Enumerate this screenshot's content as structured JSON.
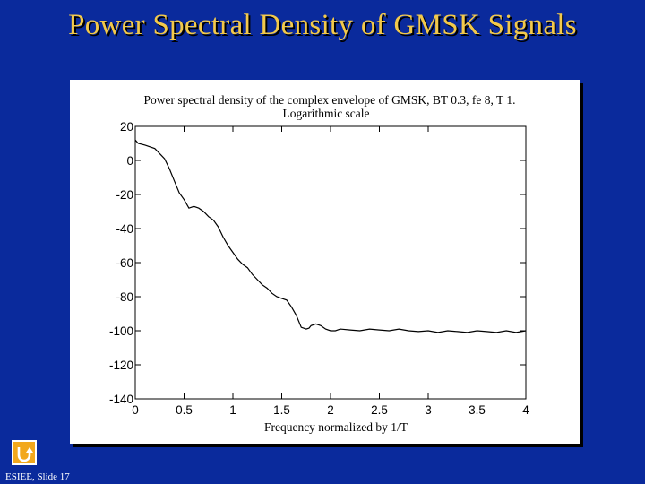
{
  "slide": {
    "title": "Power Spectral Density of GMSK Signals",
    "footer": "ESIEE, Slide 17"
  },
  "colors": {
    "background": "#0a2a9c",
    "title": "#f2c94c",
    "nav_button": "#f2a81d"
  },
  "nav": {
    "icon": "return-icon"
  },
  "chart_data": {
    "type": "line",
    "title_line1": "Power spectral density of the complex envelope of  GMSK, BT   0.3, fe   8, T   1.",
    "title_line2": "Logarithmic scale",
    "xlabel": "Frequency normalized by 1/T",
    "ylabel": "",
    "xlim": [
      0,
      4
    ],
    "ylim": [
      -140,
      20
    ],
    "xticks": [
      0,
      0.5,
      1,
      1.5,
      2,
      2.5,
      3,
      3.5,
      4
    ],
    "xtick_labels": [
      "0",
      "0.5",
      "1",
      "1.5",
      "2",
      "2.5",
      "3",
      "3.5",
      "4"
    ],
    "yticks": [
      20,
      0,
      -20,
      -40,
      -60,
      -80,
      -100,
      -120,
      -140
    ],
    "ytick_labels": [
      "20",
      "0",
      "-20",
      "-40",
      "-60",
      "-80",
      "-100",
      "-120",
      "-140"
    ],
    "grid": false,
    "series": [
      {
        "x": [
          0,
          0.03,
          0.1,
          0.2,
          0.25,
          0.3,
          0.35,
          0.4,
          0.45,
          0.5,
          0.55,
          0.6,
          0.65,
          0.7,
          0.75,
          0.8,
          0.85,
          0.9,
          0.95,
          1.0,
          1.05,
          1.1,
          1.15,
          1.2,
          1.25,
          1.3,
          1.35,
          1.4,
          1.45,
          1.5,
          1.55,
          1.6,
          1.65,
          1.7,
          1.75,
          1.78,
          1.8,
          1.85,
          1.9,
          1.95,
          2.0,
          2.05,
          2.1,
          2.2,
          2.3,
          2.4,
          2.5,
          2.6,
          2.7,
          2.8,
          2.9,
          3.0,
          3.1,
          3.2,
          3.3,
          3.4,
          3.5,
          3.6,
          3.7,
          3.8,
          3.9,
          4.0
        ],
        "y": [
          12,
          10,
          9,
          7,
          4,
          1,
          -5,
          -12,
          -19,
          -23,
          -28,
          -27,
          -28,
          -30,
          -33,
          -35,
          -39,
          -45,
          -50,
          -54,
          -58,
          -61,
          -63,
          -67,
          -70,
          -73,
          -75,
          -78,
          -80,
          -81,
          -82,
          -86,
          -91,
          -98,
          -99,
          -98.5,
          -97,
          -96,
          -97,
          -99,
          -100,
          -100,
          -99,
          -99.5,
          -100,
          -99,
          -99.5,
          -100,
          -99,
          -100,
          -100.5,
          -100,
          -101,
          -100,
          -100.5,
          -101,
          -100,
          -100.5,
          -101,
          -100,
          -101,
          -100
        ]
      }
    ]
  }
}
